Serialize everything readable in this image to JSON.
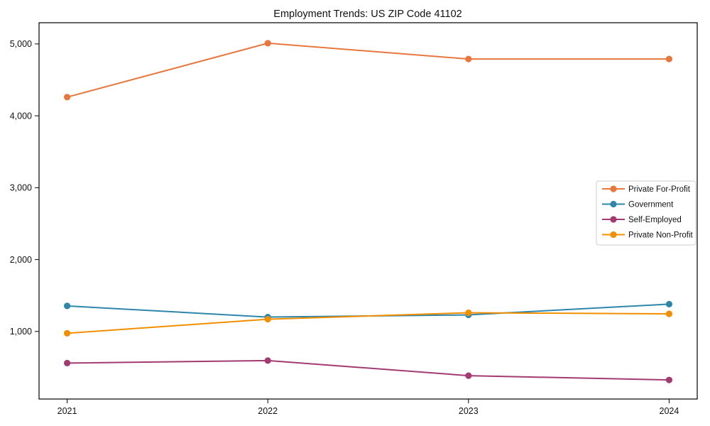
{
  "figure": {
    "background": "#ffffff",
    "text_color": "#111111",
    "spine_color": "#000000",
    "legend_border_color": "#cccccc"
  },
  "chart_data": {
    "type": "line",
    "title": "Employment Trends: US ZIP Code 41102",
    "xlabel": "",
    "ylabel": "",
    "categories": [
      2021,
      2022,
      2023,
      2024
    ],
    "x_tick_labels": [
      "2021",
      "2022",
      "2023",
      "2024"
    ],
    "y_ticks": [
      1000,
      2000,
      3000,
      4000,
      5000
    ],
    "y_tick_labels": [
      "1,000",
      "2,000",
      "3,000",
      "4,000",
      "5,000"
    ],
    "xlim": [
      2020.86,
      2024.14
    ],
    "ylim": [
      60,
      5295
    ],
    "grid": false,
    "legend_position": "center-right",
    "series": [
      {
        "name": "Private For-Profit",
        "color": "#E8773D",
        "values": [
          4260,
          5010,
          4790,
          4790
        ]
      },
      {
        "name": "Government",
        "color": "#2E86AB",
        "values": [
          1355,
          1200,
          1230,
          1380
        ]
      },
      {
        "name": "Self-Employed",
        "color": "#A23B72",
        "values": [
          560,
          595,
          385,
          325
        ]
      },
      {
        "name": "Private Non-Profit",
        "color": "#F18F01",
        "values": [
          975,
          1170,
          1260,
          1245
        ]
      }
    ]
  }
}
